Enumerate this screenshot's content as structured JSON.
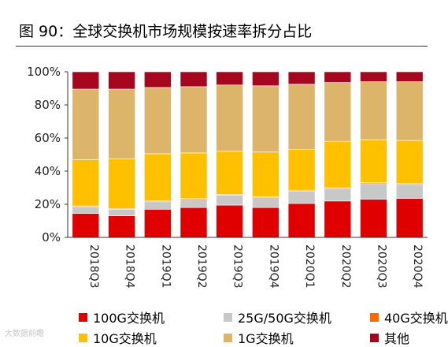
{
  "title": "图 90：全球交换机市场规模按速率拆分占比",
  "watermark": "大数据前瞻",
  "chart_data": {
    "type": "bar",
    "stacked": true,
    "categories": [
      "2018Q3",
      "2018Q4",
      "2019Q1",
      "2019Q2",
      "2019Q3",
      "2019Q4",
      "2020Q1",
      "2020Q2",
      "2020Q3",
      "2020Q4"
    ],
    "ylim": [
      0,
      100
    ],
    "yticks": [
      "0%",
      "20%",
      "40%",
      "60%",
      "80%",
      "100%"
    ],
    "series": [
      {
        "name": "100G交换机",
        "color": "#e00000",
        "values": [
          14.5,
          13,
          17,
          18,
          19.5,
          18,
          20.5,
          22,
          23,
          23.5
        ]
      },
      {
        "name": "25G/50G交换机",
        "color": "#c8c8c8",
        "values": [
          4,
          4,
          4.5,
          5,
          6,
          6,
          7.5,
          7.5,
          9.5,
          8.5
        ]
      },
      {
        "name": "40G交换机",
        "color": "#ff6a00",
        "values": [
          0.5,
          0.5,
          0.5,
          0.5,
          0.5,
          0.5,
          0.5,
          0.5,
          0.5,
          0.5
        ]
      },
      {
        "name": "10G交换机",
        "color": "#ffc000",
        "values": [
          28,
          30,
          28.5,
          27.5,
          26,
          27,
          24.5,
          28,
          26,
          26
        ]
      },
      {
        "name": "1G交换机",
        "color": "#dcb46a",
        "values": [
          42.5,
          42,
          40,
          40,
          40,
          40,
          39.5,
          35.5,
          35,
          35.5
        ]
      },
      {
        "name": "其他",
        "color": "#a6071f",
        "values": [
          10.5,
          10.5,
          9.5,
          9,
          8,
          8.5,
          7.5,
          6.5,
          6,
          6
        ]
      }
    ],
    "legend_position": "bottom",
    "grid": false
  }
}
